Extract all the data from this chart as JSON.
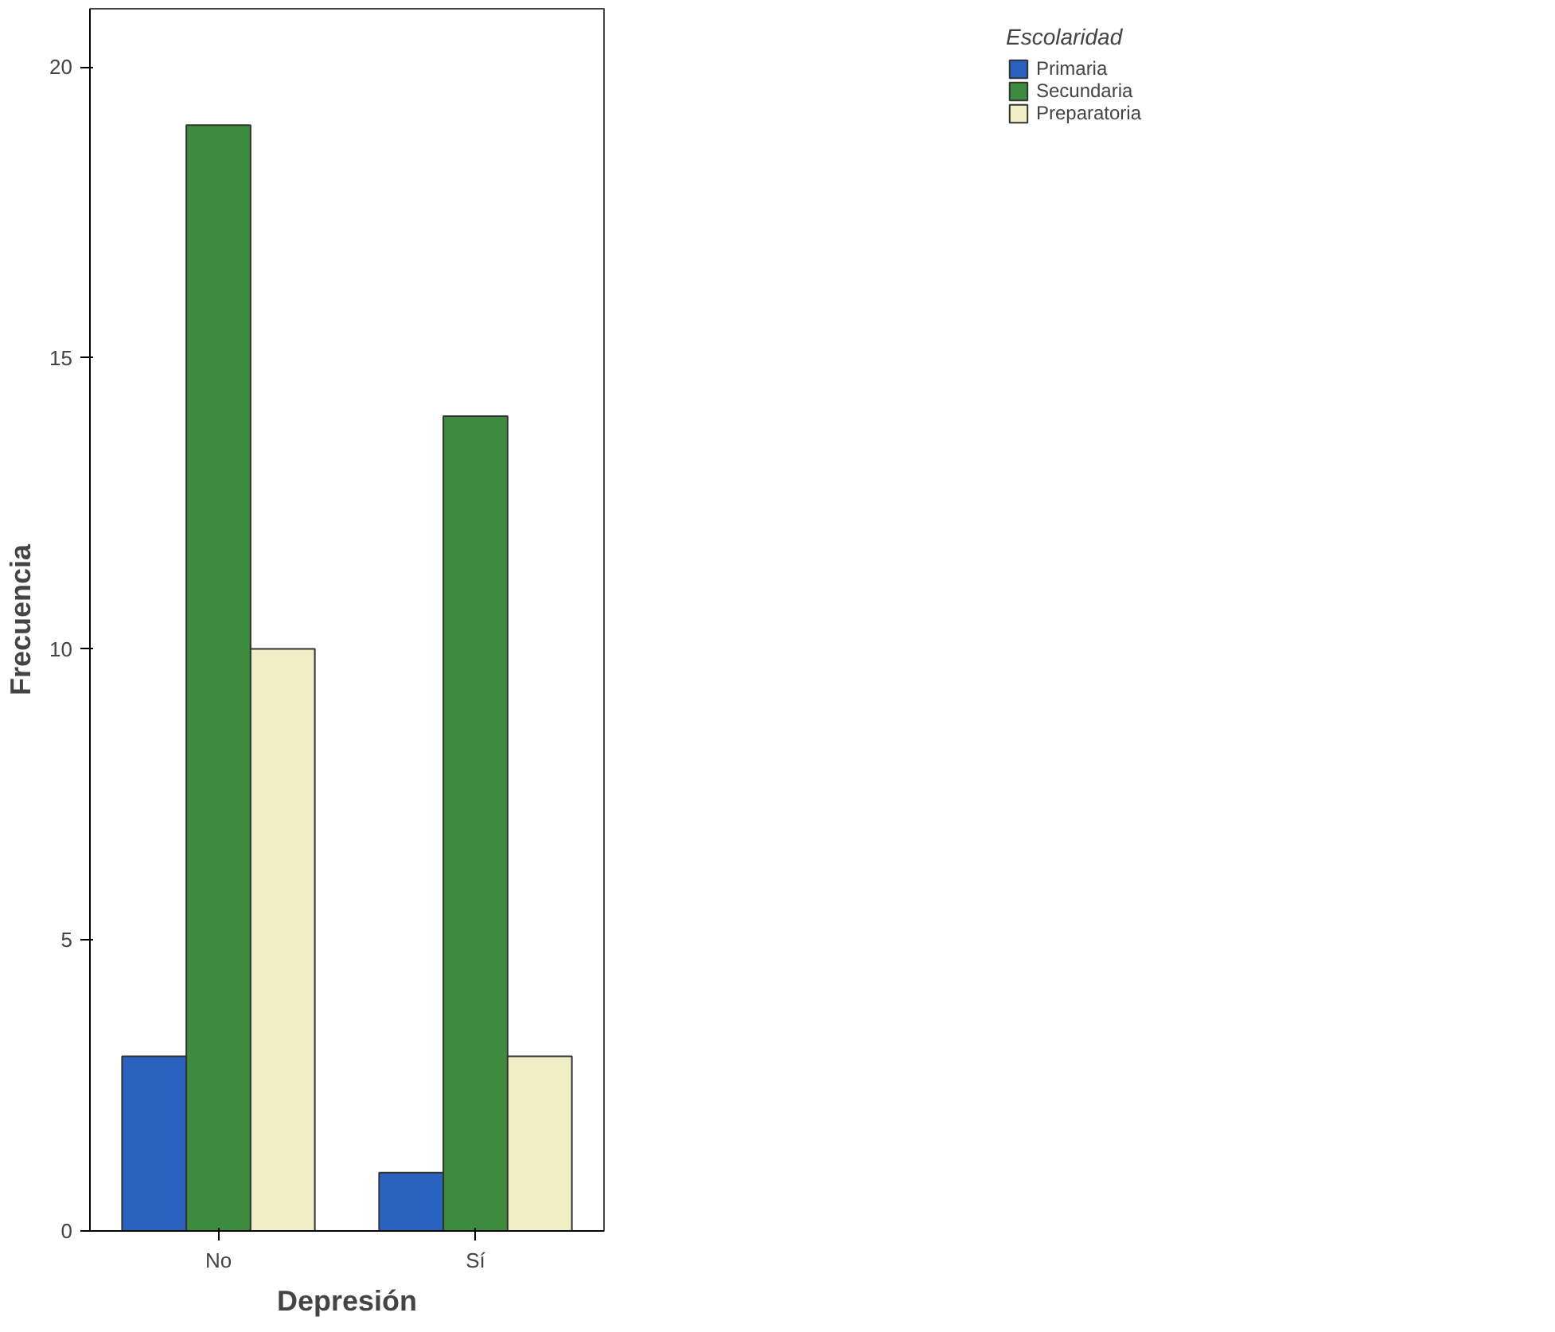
{
  "chart_data": {
    "type": "bar",
    "xlabel": "Depresión",
    "ylabel": "Frecuencia",
    "legend_title": "Escolaridad",
    "categories": [
      "No",
      "Sí"
    ],
    "series": [
      {
        "name": "Primaria",
        "color": "#2a62c0",
        "values": [
          3,
          1
        ]
      },
      {
        "name": "Secundaria",
        "color": "#3d8c3d",
        "values": [
          19,
          14
        ]
      },
      {
        "name": "Preparatoria",
        "color": "#f0eec4",
        "values": [
          10,
          3
        ]
      }
    ],
    "ylim": [
      0,
      21
    ],
    "yticks": [
      0,
      5,
      10,
      15,
      20
    ],
    "grid": false,
    "legend": "top right"
  }
}
